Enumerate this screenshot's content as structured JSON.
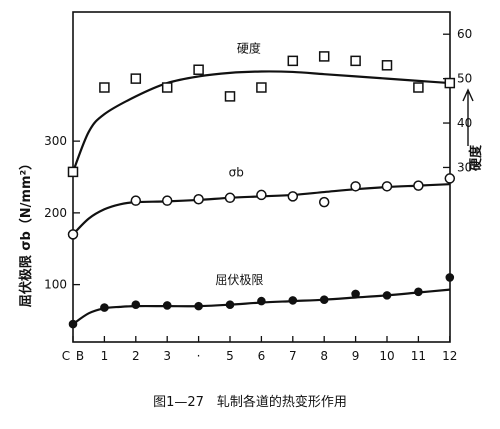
{
  "chart_data": {
    "type": "line",
    "caption": "图1—27　轧制各道的热变形作用",
    "x_ticks": [
      "C",
      "B",
      "1",
      "2",
      "3",
      "·",
      "5",
      "6",
      "7",
      "8",
      "9",
      "10",
      "11",
      "12"
    ],
    "xlim": [
      0,
      12
    ],
    "left_axis": {
      "label": "屈伏极限  σb（N/mm²）",
      "ticks": [
        100,
        200,
        300
      ],
      "ylim": [
        20,
        480
      ]
    },
    "right_axis": {
      "label": "硬度",
      "ticks": [
        30,
        40,
        50,
        60
      ],
      "ylim": [
        -9.3,
        65
      ]
    },
    "series": [
      {
        "name": "硬度",
        "axis": "right",
        "marker": "square",
        "x": [
          0,
          1,
          2,
          3,
          4,
          5,
          6,
          7,
          8,
          9,
          10,
          11,
          12
        ],
        "y": [
          29,
          48,
          50,
          48,
          52,
          46,
          48,
          54,
          55,
          54,
          53,
          48,
          49
        ],
        "fit": [
          [
            0,
            29
          ],
          [
            0.5,
            38
          ],
          [
            1,
            42
          ],
          [
            2,
            46
          ],
          [
            3,
            49
          ],
          [
            4,
            50.5
          ],
          [
            5,
            51.3
          ],
          [
            6,
            51.6
          ],
          [
            7,
            51.5
          ],
          [
            8,
            51
          ],
          [
            9,
            50.5
          ],
          [
            10,
            50
          ],
          [
            11,
            49.5
          ],
          [
            12,
            49
          ]
        ]
      },
      {
        "name": "σb",
        "axis": "left",
        "marker": "open-circle",
        "x": [
          0,
          2,
          3,
          4,
          5,
          6,
          7,
          8,
          9,
          10,
          11,
          12
        ],
        "y": [
          170,
          217,
          217,
          219,
          221,
          225,
          223,
          215,
          237,
          237,
          238,
          248
        ],
        "fit": [
          [
            0,
            170
          ],
          [
            0.5,
            192
          ],
          [
            1,
            205
          ],
          [
            1.5,
            212
          ],
          [
            2,
            215
          ],
          [
            3,
            216
          ],
          [
            4,
            218
          ],
          [
            5,
            221
          ],
          [
            6,
            223
          ],
          [
            7,
            225
          ],
          [
            8,
            229
          ],
          [
            9,
            233
          ],
          [
            10,
            236
          ],
          [
            11,
            238
          ],
          [
            12,
            240
          ]
        ]
      },
      {
        "name": "屈伏极限",
        "axis": "left",
        "marker": "filled-circle",
        "x": [
          0,
          1,
          2,
          3,
          4,
          5,
          6,
          7,
          8,
          9,
          10,
          11,
          12
        ],
        "y": [
          45,
          68,
          72,
          71,
          70,
          72,
          77,
          78,
          79,
          87,
          85,
          90,
          110
        ],
        "fit": [
          [
            0,
            45
          ],
          [
            0.5,
            60
          ],
          [
            1,
            67
          ],
          [
            1.5,
            69
          ],
          [
            2,
            70
          ],
          [
            3,
            70
          ],
          [
            4,
            70
          ],
          [
            5,
            72
          ],
          [
            6,
            75
          ],
          [
            7,
            77
          ],
          [
            8,
            79
          ],
          [
            9,
            82
          ],
          [
            10,
            85
          ],
          [
            11,
            89
          ],
          [
            12,
            93
          ]
        ]
      }
    ]
  }
}
